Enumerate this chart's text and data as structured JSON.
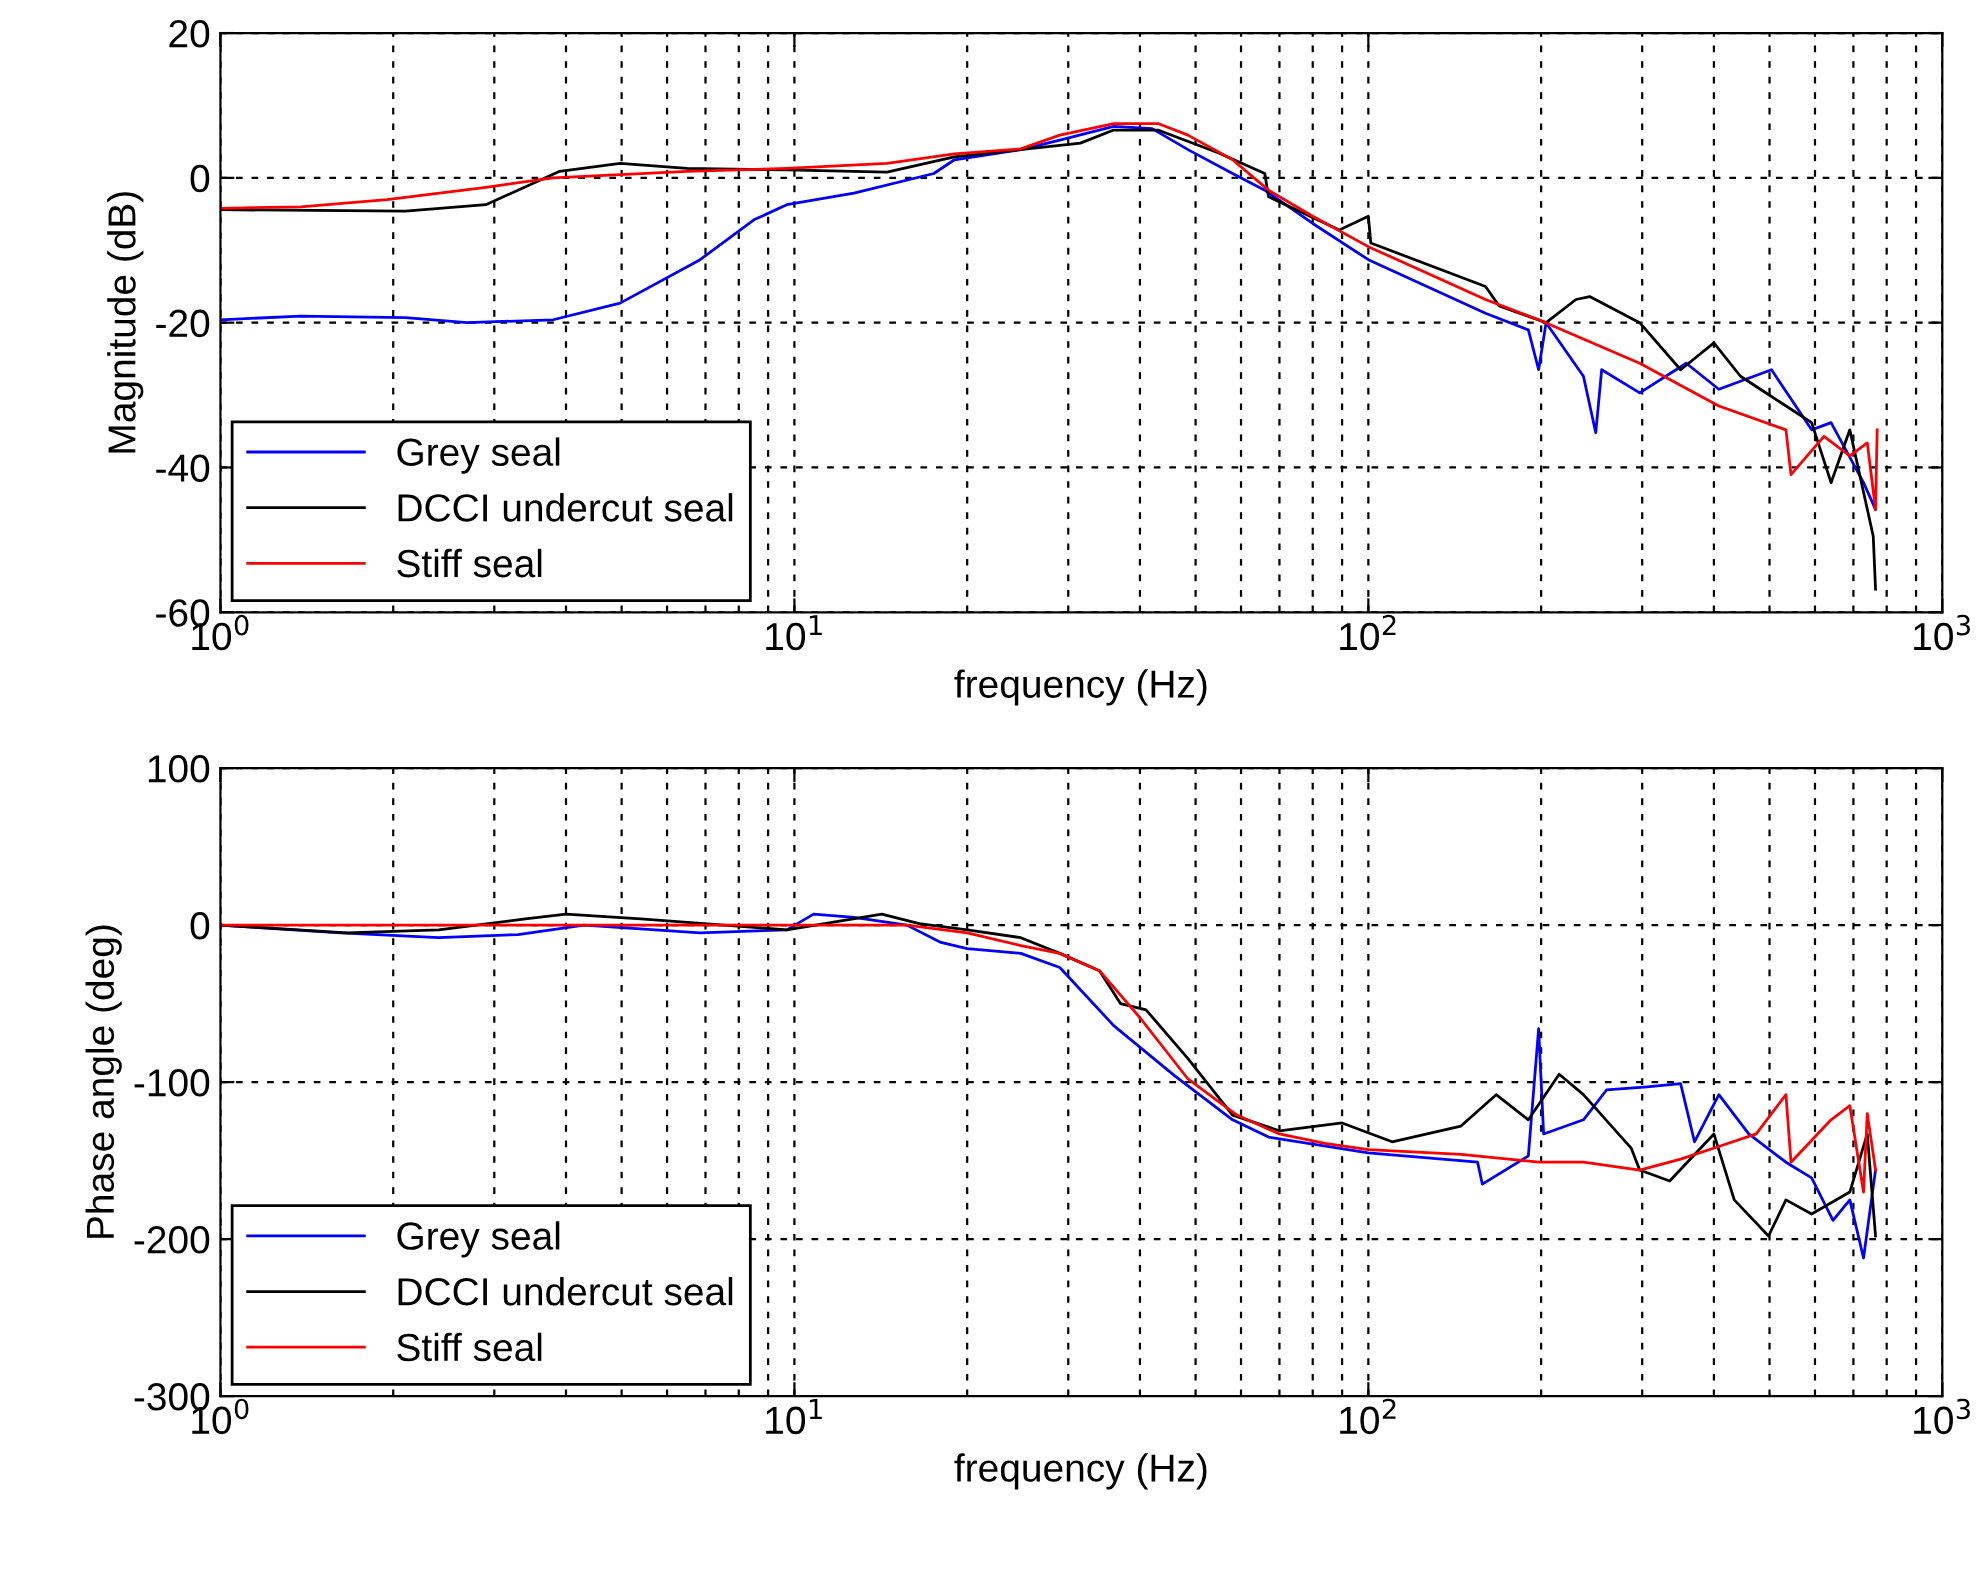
{
  "chart_data": [
    {
      "type": "line",
      "xlabel": "frequency (Hz)",
      "ylabel": "Magnitude (dB)",
      "log": "x",
      "grid": true,
      "legend": "bottom left",
      "line_style": "solid",
      "marker": "none",
      "xlim": [
        1,
        1000
      ],
      "xticks": [
        {
          "value": 1,
          "label": "10$^{0}$"
        },
        {
          "value": 10,
          "label": "10$^{1}$"
        },
        {
          "value": 100,
          "label": "10$^{2}$"
        },
        {
          "value": 1000,
          "label": "10$^{3}$"
        }
      ],
      "ylim": [
        -60,
        20
      ],
      "yticks": [
        -60,
        -40,
        -20,
        0,
        20
      ],
      "series": [
        {
          "name": "Grey seal",
          "color": "#0000ff",
          "x": [
            1,
            1.38,
            2.1,
            2.69,
            3.8,
            4.97,
            6.85,
            8.5,
            9.7,
            12.7,
            17.5,
            19,
            24.8,
            29,
            36,
            42,
            48.5,
            58,
            66,
            80,
            100,
            160,
            190,
            198,
            204,
            237,
            249,
            255,
            297,
            358,
            408,
            504,
            592,
            640,
            729,
            765
          ],
          "values": [
            -19.6,
            -19.1,
            -19.3,
            -20,
            -19.6,
            -17.3,
            -11.3,
            -5.8,
            -3.7,
            -2.1,
            0.6,
            2.5,
            3.9,
            5.2,
            7.1,
            6.8,
            3.9,
            0.6,
            -1.7,
            -6.3,
            -11.3,
            -18.7,
            -21,
            -26.5,
            -20,
            -27.4,
            -35.2,
            -26.5,
            -29.7,
            -25.6,
            -29.2,
            -26.5,
            -34.8,
            -33.8,
            -42.1,
            -45.8
          ]
        },
        {
          "name": "DCCI undercut seal",
          "color": "#000000",
          "x": [
            1,
            2.1,
            2.9,
            3.9,
            4.97,
            6.5,
            9.7,
            14.5,
            19,
            31.5,
            36,
            43,
            55,
            66,
            67,
            89,
            100,
            101,
            160,
            169,
            204,
            230,
            243,
            297,
            350,
            400,
            445,
            504,
            592,
            640,
            690,
            758,
            765
          ],
          "values": [
            -4.4,
            -4.6,
            -3.7,
            0.9,
            2,
            1.3,
            1.1,
            0.8,
            2.9,
            4.8,
            6.6,
            6.6,
            3.4,
            0.6,
            -2.6,
            -7.2,
            -5.3,
            -9,
            -15,
            -17.7,
            -20,
            -16.8,
            -16.4,
            -20,
            -26.5,
            -22.8,
            -27.4,
            -30.2,
            -33.8,
            -42.1,
            -34.8,
            -49.5,
            -56.8
          ]
        },
        {
          "name": "Stiff seal",
          "color": "#ff0000",
          "x": [
            1,
            1.38,
            1.95,
            2.9,
            3.8,
            6.5,
            9.7,
            14.5,
            19,
            24.8,
            29,
            36,
            43,
            48.5,
            58,
            67,
            80,
            100,
            160,
            198,
            297,
            408,
            534,
            545,
            622,
            690,
            740,
            765,
            770
          ],
          "values": [
            -4.2,
            -4,
            -3,
            -1.3,
            0,
            0.9,
            1.3,
            2,
            3.3,
            4,
            5.9,
            7.5,
            7.5,
            5.9,
            2.5,
            -1.7,
            -5.3,
            -9.5,
            -16.8,
            -19.6,
            -25.6,
            -31.5,
            -34.8,
            -41,
            -35.7,
            -38.4,
            -36.6,
            -45.8,
            -34.8
          ]
        }
      ]
    },
    {
      "type": "line",
      "xlabel": "frequency (Hz)",
      "ylabel": "Phase angle (deg)",
      "log": "x",
      "grid": true,
      "legend": "bottom left",
      "line_style": "solid",
      "marker": "none",
      "xlim": [
        1,
        1000
      ],
      "xticks": [
        {
          "value": 1,
          "label": "10$^{0}$"
        },
        {
          "value": 10,
          "label": "10$^{1}$"
        },
        {
          "value": 100,
          "label": "10$^{2}$"
        },
        {
          "value": 1000,
          "label": "10$^{3}$"
        }
      ],
      "ylim": [
        -300,
        100
      ],
      "yticks": [
        -300,
        -200,
        -100,
        0,
        100
      ],
      "series": [
        {
          "name": "Grey seal",
          "color": "#0000ff",
          "x": [
            1,
            1.62,
            2.4,
            3.3,
            4.3,
            6.85,
            9.7,
            10.8,
            12.7,
            15.7,
            18,
            20,
            24.8,
            29,
            36,
            46,
            58,
            67,
            100,
            155,
            158,
            190,
            198,
            202,
            237,
            260,
            306,
            350,
            370,
            408,
            460,
            534,
            592,
            645,
            690,
            729,
            765
          ],
          "values": [
            0,
            -5,
            -8,
            -6,
            0,
            -5,
            -3,
            7,
            5,
            0,
            -11,
            -15,
            -18,
            -27,
            -64,
            -96,
            -124,
            -135,
            -145,
            -151,
            -165,
            -147,
            -66,
            -133,
            -124,
            -105,
            -103,
            -101,
            -138,
            -108,
            -133,
            -151,
            -161,
            -188,
            -175,
            -212,
            -156
          ]
        },
        {
          "name": "DCCI undercut seal",
          "color": "#000000",
          "x": [
            1,
            1.66,
            2.4,
            3.4,
            4,
            5.4,
            9.7,
            14.2,
            16.5,
            20,
            24.8,
            29,
            34,
            37,
            41,
            48.5,
            58,
            70,
            90,
            110,
            145,
            167,
            190,
            215,
            237,
            287,
            297,
            335,
            400,
            434,
            498,
            534,
            592,
            690,
            740,
            765
          ],
          "values": [
            0,
            -5,
            -3,
            4,
            7,
            4,
            -3,
            7,
            1,
            -3,
            -8,
            -18,
            -29,
            -50,
            -54,
            -85,
            -121,
            -131,
            -126,
            -138,
            -128,
            -108,
            -124,
            -95,
            -108,
            -142,
            -156,
            -163,
            -133,
            -175,
            -198,
            -175,
            -184,
            -170,
            -133,
            -198
          ]
        },
        {
          "name": "Stiff seal",
          "color": "#ff0000",
          "x": [
            1,
            15.7,
            20,
            24.8,
            29,
            34,
            40,
            48.5,
            59,
            70,
            84,
            100,
            145,
            198,
            237,
            297,
            350,
            408,
            474,
            534,
            545,
            640,
            690,
            729,
            740,
            765
          ],
          "values": [
            0,
            0,
            -5,
            -13,
            -18,
            -29,
            -59,
            -98,
            -121,
            -133,
            -139,
            -143,
            -146,
            -151,
            -151,
            -156,
            -149,
            -141,
            -133,
            -108,
            -151,
            -124,
            -115,
            -170,
            -120,
            -156
          ]
        }
      ]
    }
  ]
}
